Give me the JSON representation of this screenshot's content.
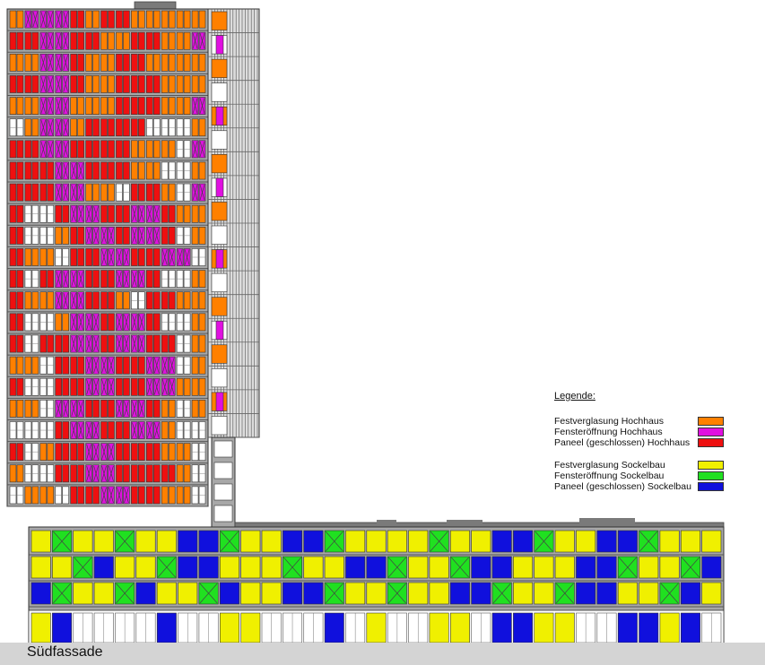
{
  "legend": {
    "title": "Legende:",
    "groups": [
      {
        "items": [
          {
            "label": "Festverglasung Hochhaus",
            "color": "#ff8000",
            "key": "A"
          },
          {
            "label": "Fensteröffnung Hochhaus",
            "color": "#e010e0",
            "key": "B"
          },
          {
            "label": "Paneel (geschlossen) Hochhaus",
            "color": "#ee1010",
            "key": "C"
          }
        ]
      },
      {
        "items": [
          {
            "label": "Festverglasung Sockelbau",
            "color": "#f0f000",
            "key": "D"
          },
          {
            "label": "Fensteröffnung Sockelbau",
            "color": "#20e020",
            "key": "E"
          },
          {
            "label": "Paneel (geschlossen) Sockelbau",
            "color": "#1010dd",
            "key": "F"
          }
        ]
      }
    ]
  },
  "caption": "Südfassade",
  "facade": {
    "tower_floors": [
      "ABBBCACCAAAAA",
      "CCBBCCAACCAAB",
      "AABBCAACCAAAA",
      "CCBBCAACCCAAA",
      "AABBAAACCCAAB",
      "WABBACCCCWWWA",
      "CCBBCCCCAAAWB",
      "CCCBBCCCAAWWA",
      "CCCBBAAWCCAWB",
      "CWWCBBCCBBCAA",
      "CWWACBBCBBCWA",
      "CAAWCCBBCCBBW",
      "CWCBBCCBBCWWA",
      "CAABBCCAWCCAA",
      "CWWABBCBBCWWA",
      "CWCCBBCBBCCWA",
      "AAWCCBBCCBBWA",
      "CWWCCBBCCBBAA",
      "AAWBBCCBBCAWA",
      "WWWCBBCCBBAWW",
      "CWACCBBCCCAAW",
      "AWWCCBBCCCCAW",
      "WAAWCCBBCCAAW"
    ],
    "podium_floors": [
      "DEDDEDDFFEDDFFEDDDDEDDFFEDDFFEDDD",
      "DDEFDDEFFDDDEDDFFEDDEFFDDDFFEDDEF",
      "FEDDEFDDEFDDFFEDDEDDFFEDDEFFDDEFD"
    ],
    "ground_floor": "DFWWWWFWWDDWWWFWDWWDDWFFDDWWFFDFW"
  }
}
